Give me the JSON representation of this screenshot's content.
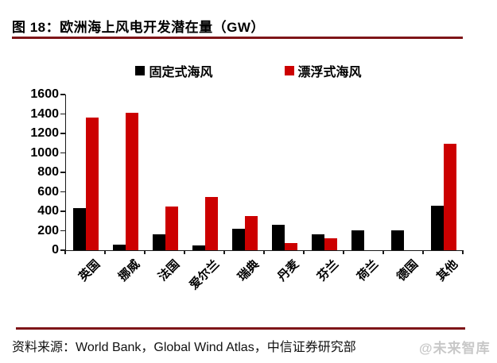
{
  "title": "图 18：欧洲海上风电开发潜在量（GW）",
  "source": "资料来源：World Bank，Global Wind Atlas，中信证券研究部",
  "watermark": "@未来智库",
  "colors": {
    "fixed_series": "#000000",
    "floating_series": "#CC0000",
    "rule": "#7E1518",
    "axis": "#1a1a1a",
    "watermark": "#C8C8C8"
  },
  "chart_data": {
    "type": "bar",
    "title": "欧洲海上风电开发潜在量（GW）",
    "categories": [
      "英国",
      "挪威",
      "法国",
      "爱尔兰",
      "瑞典",
      "丹麦",
      "芬兰",
      "荷兰",
      "德国",
      "其他"
    ],
    "series": [
      {
        "name": "固定式海风",
        "color": "#000000",
        "values": [
          430,
          60,
          160,
          50,
          220,
          265,
          160,
          205,
          200,
          455
        ]
      },
      {
        "name": "漂浮式海风",
        "color": "#CC0000",
        "values": [
          1360,
          1410,
          450,
          550,
          350,
          70,
          125,
          0,
          0,
          1090
        ]
      }
    ],
    "xlabel": "",
    "ylabel": "",
    "ylim": [
      0,
      1600
    ],
    "ytick_step": 200,
    "ytick_labels": [
      "0",
      "200",
      "400",
      "600",
      "800",
      "1000",
      "1200",
      "1400",
      "1600"
    ],
    "legend_position": "top",
    "grid": false,
    "x_label_rotation": -45
  }
}
